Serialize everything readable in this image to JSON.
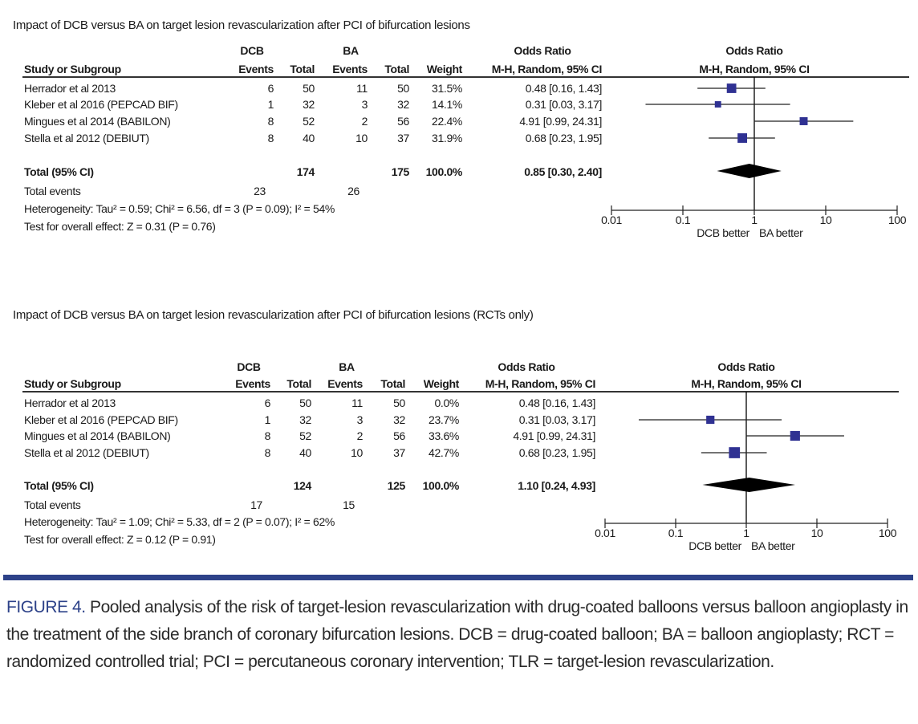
{
  "colors": {
    "marker": "#2f3192",
    "diamond": "#000000",
    "rule": "#2d4289",
    "caption_label": "#2d4289"
  },
  "panels": [
    {
      "title": "Impact of DCB versus BA on target lesion revascularization after PCI of bifurcation lesions",
      "header": {
        "group1": "DCB",
        "group2": "BA",
        "or_top": "Odds Ratio",
        "study": "Study or Subgroup",
        "events1": "Events",
        "total1": "Total",
        "events2": "Events",
        "total2": "Total",
        "weight": "Weight",
        "or_method": "M-H, Random, 95% CI",
        "plot_top": "Odds Ratio",
        "plot_method": "M-H, Random, 95% CI"
      },
      "studies": [
        {
          "name": "Herrador et al 2013",
          "e1": "6",
          "t1": "50",
          "e2": "11",
          "t2": "50",
          "weight": "31.5%",
          "or_ci": "0.48 [0.16, 1.43]"
        },
        {
          "name": "Kleber et al 2016 (PEPCAD BIF)",
          "e1": "1",
          "t1": "32",
          "e2": "3",
          "t2": "32",
          "weight": "14.1%",
          "or_ci": "0.31 [0.03, 3.17]"
        },
        {
          "name": "Mingues et al 2014 (BABILON)",
          "e1": "8",
          "t1": "52",
          "e2": "2",
          "t2": "56",
          "weight": "22.4%",
          "or_ci": "4.91 [0.99, 24.31]"
        },
        {
          "name": "Stella et al 2012 (DEBIUT)",
          "e1": "8",
          "t1": "40",
          "e2": "10",
          "t2": "37",
          "weight": "31.9%",
          "or_ci": "0.68 [0.23, 1.95]"
        }
      ],
      "total": {
        "label": "Total (95% CI)",
        "t1": "174",
        "t2": "175",
        "weight": "100.0%",
        "or_ci": "0.85 [0.30, 2.40]"
      },
      "total_events": {
        "label": "Total events",
        "e1": "23",
        "e2": "26"
      },
      "heterogeneity": "Heterogeneity: Tau² = 0.59; Chi² = 6.56, df = 3 (P = 0.09); I² = 54%",
      "overall_effect": "Test for overall effect: Z = 0.31 (P = 0.76)",
      "axis": {
        "ticks": [
          "0.01",
          "0.1",
          "1",
          "10",
          "100"
        ],
        "left_label": "DCB better",
        "right_label": "BA better"
      }
    },
    {
      "title": "Impact of DCB versus BA on target lesion revascularization after PCI of bifurcation lesions (RCTs only)",
      "header": {
        "group1": "DCB",
        "group2": "BA",
        "or_top": "Odds Ratio",
        "study": "Study or Subgroup",
        "events1": "Events",
        "total1": "Total",
        "events2": "Events",
        "total2": "Total",
        "weight": "Weight",
        "or_method": "M-H, Random, 95% CI",
        "plot_top": "Odds Ratio",
        "plot_method": "M-H, Random, 95% CI"
      },
      "studies": [
        {
          "name": "Herrador et al 2013",
          "e1": "6",
          "t1": "50",
          "e2": "11",
          "t2": "50",
          "weight": "0.0%",
          "or_ci": "0.48 [0.16, 1.43]"
        },
        {
          "name": "Kleber et al 2016 (PEPCAD BIF)",
          "e1": "1",
          "t1": "32",
          "e2": "3",
          "t2": "32",
          "weight": "23.7%",
          "or_ci": "0.31 [0.03, 3.17]"
        },
        {
          "name": "Mingues et al 2014 (BABILON)",
          "e1": "8",
          "t1": "52",
          "e2": "2",
          "t2": "56",
          "weight": "33.6%",
          "or_ci": "4.91 [0.99, 24.31]"
        },
        {
          "name": "Stella et al 2012 (DEBIUT)",
          "e1": "8",
          "t1": "40",
          "e2": "10",
          "t2": "37",
          "weight": "42.7%",
          "or_ci": "0.68 [0.23, 1.95]"
        }
      ],
      "total": {
        "label": "Total (95% CI)",
        "t1": "124",
        "t2": "125",
        "weight": "100.0%",
        "or_ci": "1.10 [0.24, 4.93]"
      },
      "total_events": {
        "label": "Total events",
        "e1": "17",
        "e2": "15"
      },
      "heterogeneity": "Heterogeneity: Tau² = 1.09; Chi² = 5.33, df = 2 (P = 0.07); I² = 62%",
      "overall_effect": "Test for overall effect: Z = 0.12 (P = 0.91)",
      "axis": {
        "ticks": [
          "0.01",
          "0.1",
          "1",
          "10",
          "100"
        ],
        "left_label": "DCB better",
        "right_label": "BA better"
      }
    }
  ],
  "chart_data": [
    {
      "type": "forest",
      "x_scale": "log",
      "xlim": [
        0.01,
        100
      ],
      "reference_line": 1,
      "studies": [
        {
          "or": 0.48,
          "ci": [
            0.16,
            1.43
          ],
          "weight": 31.5
        },
        {
          "or": 0.31,
          "ci": [
            0.03,
            3.17
          ],
          "weight": 14.1
        },
        {
          "or": 4.91,
          "ci": [
            0.99,
            24.31
          ],
          "weight": 22.4
        },
        {
          "or": 0.68,
          "ci": [
            0.23,
            1.95
          ],
          "weight": 31.9
        }
      ],
      "pooled": {
        "or": 0.85,
        "ci": [
          0.3,
          2.4
        ]
      }
    },
    {
      "type": "forest",
      "x_scale": "log",
      "xlim": [
        0.01,
        100
      ],
      "reference_line": 1,
      "studies": [
        {
          "or": 0.48,
          "ci": [
            0.16,
            1.43
          ],
          "weight": 0.0
        },
        {
          "or": 0.31,
          "ci": [
            0.03,
            3.17
          ],
          "weight": 23.7
        },
        {
          "or": 4.91,
          "ci": [
            0.99,
            24.31
          ],
          "weight": 33.6
        },
        {
          "or": 0.68,
          "ci": [
            0.23,
            1.95
          ],
          "weight": 42.7
        }
      ],
      "pooled": {
        "or": 1.1,
        "ci": [
          0.24,
          4.93
        ]
      }
    }
  ],
  "caption": {
    "label": "FIGURE 4.",
    "text": " Pooled analysis of the risk of target-lesion revascularization with drug-coated balloons versus balloon angioplasty in the treatment of the side branch of coronary bifurcation lesions. DCB = drug-coated balloon; BA = balloon angioplasty; RCT = randomized controlled trial; PCI = percutaneous coronary intervention; TLR = target-lesion revascularization."
  }
}
